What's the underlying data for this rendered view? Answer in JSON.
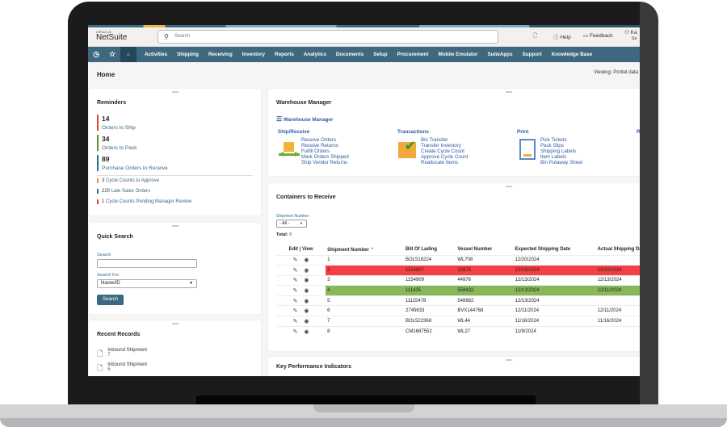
{
  "app": {
    "brand_small": "ORACLE",
    "brand": "NetSuite",
    "search_placeholder": "Search",
    "help": "Help",
    "feedback": "Feedback",
    "user_initials": "Ka",
    "user_sub": "Sa"
  },
  "nav": {
    "icons": [
      "recent-icon",
      "star-icon",
      "home-icon"
    ],
    "items": [
      "Activities",
      "Shipping",
      "Receiving",
      "Inventory",
      "Reports",
      "Analytics",
      "Documents",
      "Setup",
      "Procurement",
      "Mobile Emulator",
      "SuiteApps",
      "Support",
      "Knowledge Base"
    ]
  },
  "page": {
    "title": "Home",
    "viewing": "Viewing: Portlet data"
  },
  "reminders": {
    "title": "Reminders",
    "big": [
      {
        "count": "14",
        "label": "Orders to Ship",
        "color": "#d94a3c"
      },
      {
        "count": "34",
        "label": "Orders to Pack",
        "color": "#5f8f3a"
      },
      {
        "count": "89",
        "label": "Purchase Orders to Receive",
        "color": "#2f6f8f"
      }
    ],
    "small": [
      {
        "count": "3",
        "label": "Cycle Counts to Approve",
        "color": "#e8913a"
      },
      {
        "count": "220",
        "label": "Late Sales Orders",
        "color": "#2f6f8f"
      },
      {
        "count": "1",
        "label": "Cycle Counts Pending Manager Review",
        "color": "#d94a3c"
      }
    ]
  },
  "quick_search": {
    "title": "Quick Search",
    "search_label": "Search",
    "search_value": "",
    "search_for_label": "Search For",
    "search_for_value": "Name/ID",
    "button": "Search"
  },
  "recent": {
    "title": "Recent Records",
    "items": [
      {
        "type": "Inbound Shipment",
        "id": "7"
      },
      {
        "type": "Inbound Shipment",
        "id": "6"
      }
    ]
  },
  "warehouse": {
    "title": "Warehouse Manager",
    "menu_link": "Warehouse Manager",
    "sections": [
      {
        "title": "Ship/Receive",
        "links": [
          "Receive Orders",
          "Receive Returns",
          "Fulfill Orders",
          "Mark Orders Shipped",
          "Ship Vendor Returns"
        ]
      },
      {
        "title": "Transactions",
        "links": [
          "Bin Transfer",
          "Transfer Inventory",
          "Create Cycle Count",
          "Approve Cycle Count",
          "Reallocate Items"
        ]
      },
      {
        "title": "Print",
        "links": [
          "Pick Tickets",
          "Pack Slips",
          "Shipping Labels",
          "Item Labels",
          "Bin Putaway Sheet"
        ]
      }
    ],
    "cut_section": "R"
  },
  "containers": {
    "title": "Containers to Receive",
    "filter_label": "Shipment Number",
    "filter_value": "- All -",
    "total_label": "Total:",
    "total": "8",
    "columns": [
      "Edit | View",
      "Shipment Number",
      "Bill Of Lading",
      "Vessel Number",
      "Expected Shipping Date",
      "Actual Shipping Date"
    ],
    "rows": [
      {
        "num": "1",
        "bol": "BOL516224",
        "vessel": "WL708",
        "expected": "12/20/2024",
        "actual": "",
        "status": ""
      },
      {
        "num": "2",
        "bol": "1154907",
        "vessel": "23975",
        "expected": "12/13/2024",
        "actual": "12/18/2024",
        "status": "red"
      },
      {
        "num": "3",
        "bol": "1154909",
        "vessel": "44976",
        "expected": "12/13/2024",
        "actual": "12/13/2024",
        "status": ""
      },
      {
        "num": "4",
        "bol": "111425",
        "vessel": "558432",
        "expected": "12/13/2024",
        "actual": "12/11/2024",
        "status": "grn"
      },
      {
        "num": "5",
        "bol": "11115478",
        "vessel": "546682",
        "expected": "12/13/2024",
        "actual": "",
        "status": ""
      },
      {
        "num": "6",
        "bol": "2745633",
        "vessel": "BVX144768",
        "expected": "12/11/2024",
        "actual": "12/11/2024",
        "status": ""
      },
      {
        "num": "7",
        "bol": "BOL522368",
        "vessel": "WL44",
        "expected": "11/16/2024",
        "actual": "11/16/2024",
        "status": ""
      },
      {
        "num": "8",
        "bol": "CM1687552",
        "vessel": "WL27",
        "expected": "11/9/2024",
        "actual": "",
        "status": ""
      }
    ]
  },
  "kpi": {
    "title": "Key Performance Indicators"
  }
}
